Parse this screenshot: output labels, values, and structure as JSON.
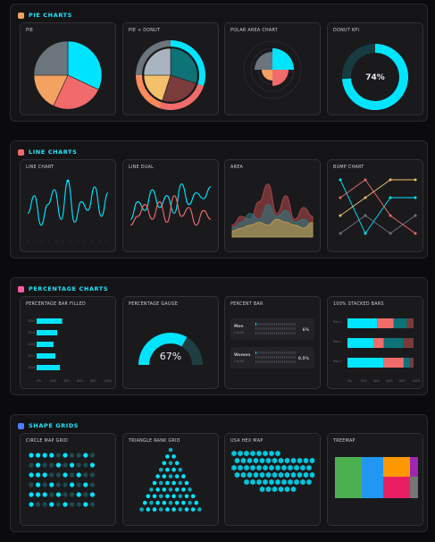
{
  "sections": [
    {
      "title": "PIE CHARTS",
      "icon": "pie-icon",
      "cards": [
        "PIE",
        "PIE + DONUT",
        "POLAR AREA CHART",
        "DONUT KPI"
      ]
    },
    {
      "title": "LINE CHARTS",
      "icon": "line-chart-icon",
      "cards": [
        "LINE CHART",
        "LINE DUAL",
        "AREA",
        "BUMP CHART"
      ]
    },
    {
      "title": "PERCENTAGE CHARTS",
      "icon": "bar-chart-icon",
      "cards": [
        "PERCENTAGE BAR FILLED",
        "PERCENTAGE GAUGE",
        "PERCENT BAR",
        "100% STACKED BARS"
      ]
    },
    {
      "title": "SHAPE GRIDS",
      "icon": "diamond-icon",
      "cards": [
        "CIRCLE MAP GRID",
        "TRIANGLE RANK GRID",
        "USA HEX MAP",
        "TREEMAP"
      ]
    }
  ],
  "colors": {
    "cyan": "#00e5ff",
    "red": "#f26b6b",
    "orange": "#f4a261",
    "gray": "#6c757d",
    "teal": "#0d7377",
    "maroon": "#7a3b3b",
    "yellow": "#f4c06b"
  },
  "chart_data": [
    {
      "type": "pie",
      "title": "PIE",
      "values": [
        32,
        25,
        18,
        25
      ]
    },
    {
      "type": "pie",
      "title": "PIE + DONUT",
      "values": [
        30,
        25,
        20,
        25
      ]
    },
    {
      "type": "pie",
      "title": "POLAR AREA CHART",
      "values": [
        4,
        3,
        2,
        1
      ]
    },
    {
      "type": "pie",
      "title": "DONUT KPI",
      "values": [
        74,
        26
      ],
      "label": "74%"
    },
    {
      "type": "line",
      "title": "LINE CHART",
      "series": [
        {
          "values": [
            40,
            70,
            20,
            55,
            80,
            30,
            95,
            25,
            60,
            45,
            85,
            35,
            75
          ]
        }
      ]
    },
    {
      "type": "line",
      "title": "LINE DUAL",
      "series": [
        {
          "values": [
            30,
            60,
            45,
            80,
            50,
            70,
            40,
            90,
            55,
            75,
            65,
            85
          ]
        },
        {
          "values": [
            20,
            35,
            55,
            30,
            60,
            25,
            70,
            35,
            50,
            20,
            45,
            30
          ]
        }
      ]
    },
    {
      "type": "area",
      "title": "AREA",
      "series": [
        {
          "values": [
            20,
            35,
            30,
            60,
            90,
            40,
            70,
            30,
            50,
            35
          ]
        },
        {
          "values": [
            15,
            25,
            40,
            30,
            55,
            35,
            45,
            25,
            30,
            20
          ]
        },
        {
          "values": [
            10,
            15,
            20,
            25,
            20,
            30,
            25,
            20,
            15,
            25
          ]
        }
      ]
    },
    {
      "type": "line",
      "title": "BUMP CHART",
      "series": [
        {
          "values": [
            1,
            4,
            2,
            2
          ]
        },
        {
          "values": [
            2,
            1,
            3,
            4
          ]
        },
        {
          "values": [
            3,
            2,
            1,
            1
          ]
        },
        {
          "values": [
            4,
            3,
            4,
            3
          ]
        }
      ]
    },
    {
      "type": "bar",
      "title": "PERCENTAGE BAR FILLED",
      "categories": [
        "2020",
        "2019",
        "2018",
        "2017",
        "2016"
      ],
      "values": [
        68,
        55,
        45,
        50,
        62
      ],
      "ticks": [
        "0%",
        "20%",
        "40%",
        "60%",
        "80%",
        "100%"
      ]
    },
    {
      "type": "bar",
      "title": "PERCENTAGE GAUGE",
      "values": [
        67
      ],
      "label": "67%"
    },
    {
      "type": "bar",
      "title": "PERCENT BAR",
      "categories": [
        "Men",
        "Women"
      ],
      "sub": [
        "0 to 80",
        "1 to 80"
      ],
      "values": [
        6,
        0.5
      ],
      "labels": [
        "6%",
        "0.5%"
      ]
    },
    {
      "type": "bar",
      "title": "100% STACKED BARS",
      "categories": [
        "Row 1",
        "Row 2",
        "Row 3"
      ],
      "series": [
        {
          "values": [
            45,
            40,
            55
          ]
        },
        {
          "values": [
            25,
            15,
            30
          ]
        },
        {
          "values": [
            20,
            30,
            10
          ]
        },
        {
          "values": [
            10,
            15,
            5
          ]
        }
      ],
      "ticks": [
        "0%",
        "20%",
        "40%",
        "60%",
        "80%",
        "100%"
      ]
    }
  ]
}
